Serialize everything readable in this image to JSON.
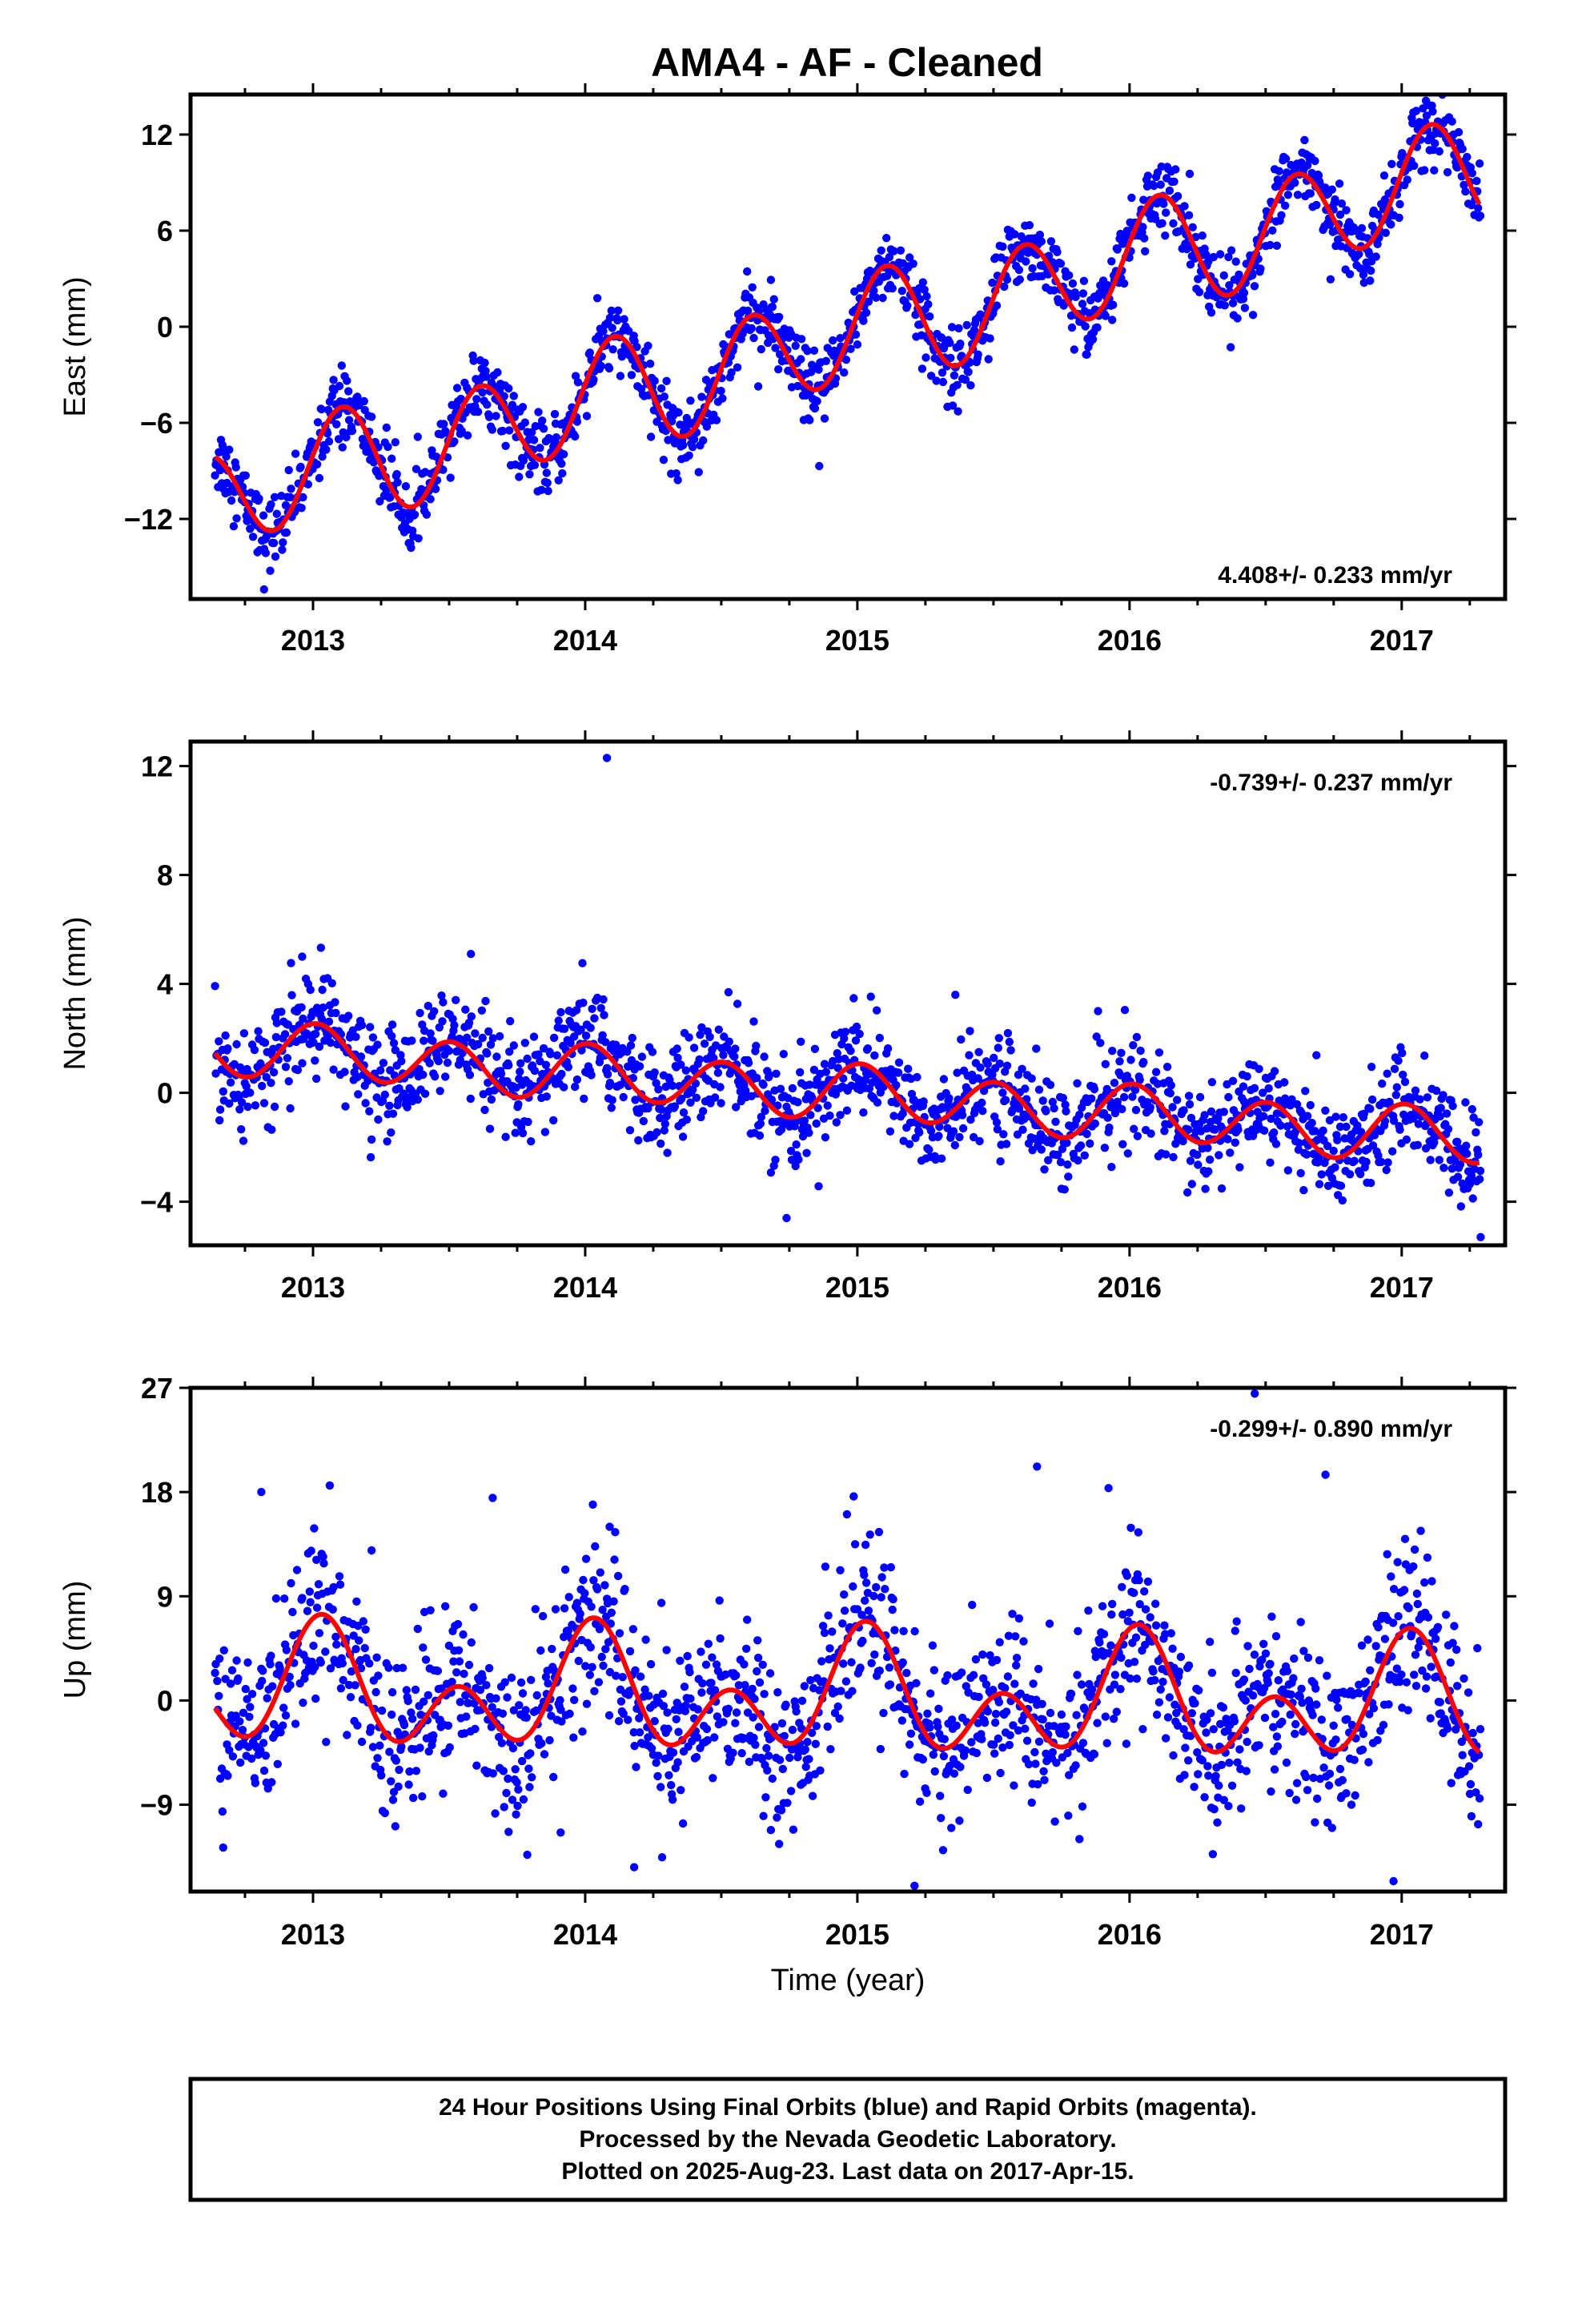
{
  "title": "AMA4  - AF - Cleaned",
  "colors": {
    "final_orbits": "#0000ff",
    "rapid_orbits": "#ff00ff",
    "model": "#ff0000",
    "axes": "#000000"
  },
  "chart_data": [
    {
      "type": "scatter",
      "panel": "east",
      "ylabel": "East (mm)",
      "xlabel": "",
      "xlim": [
        2012.55,
        2017.38
      ],
      "ylim": [
        -17,
        14.5
      ],
      "yticks": [
        -12,
        -6,
        0,
        6,
        12
      ],
      "xticks": [
        2013,
        2014,
        2015,
        2016,
        2017
      ],
      "xtick_labels": [
        "2013",
        "2014",
        "2015",
        "2016",
        "2017"
      ],
      "rate_text": "4.408+/- 0.233 mm/yr",
      "model": {
        "intercept": -10.75,
        "rate": 4.408,
        "t0": 2012.65,
        "annual_sin": 0.0,
        "annual_cos": 0.6,
        "semiannual_sin": 3.2,
        "semiannual_cos": 0.6
      },
      "data_range": [
        2012.64,
        2017.29
      ],
      "scatter_sd": 1.1,
      "outliers": [
        [
          2012.82,
          -16.4
        ],
        [
          2014.86,
          -8.7
        ],
        [
          2013.27,
          -6.3
        ]
      ]
    },
    {
      "type": "scatter",
      "panel": "north",
      "ylabel": "North (mm)",
      "xlabel": "",
      "xlim": [
        2012.55,
        2017.38
      ],
      "ylim": [
        -5.6,
        12.9
      ],
      "yticks": [
        -4,
        0,
        4,
        8,
        12
      ],
      "xticks": [
        2013,
        2014,
        2015,
        2016,
        2017
      ],
      "xtick_labels": [
        "2013",
        "2014",
        "2015",
        "2016",
        "2017"
      ],
      "rate_text": "-0.739+/- 0.237 mm/yr",
      "model": {
        "intercept": 1.7,
        "rate": -0.739,
        "t0": 2012.65,
        "annual_sin": 0.1,
        "annual_cos": 0.15,
        "semiannual_sin": 0.1,
        "semiannual_cos": 0.95
      },
      "data_range": [
        2012.64,
        2017.29
      ],
      "scatter_sd": 0.95,
      "outliers": [
        [
          2014.08,
          12.3
        ],
        [
          2014.74,
          -4.6
        ],
        [
          2015.36,
          3.6
        ],
        [
          2017.29,
          -5.3
        ],
        [
          2012.96,
          5.0
        ],
        [
          2013.58,
          5.1
        ]
      ]
    },
    {
      "type": "scatter",
      "panel": "up",
      "ylabel": "Up (mm)",
      "xlabel": "Time (year)",
      "xlim": [
        2012.55,
        2017.38
      ],
      "ylim": [
        -16.5,
        27
      ],
      "yticks": [
        -9,
        0,
        9,
        18,
        27
      ],
      "xticks": [
        2013,
        2014,
        2015,
        2016,
        2017
      ],
      "xtick_labels": [
        "2013",
        "2014",
        "2015",
        "2016",
        "2017"
      ],
      "rate_text": "-0.299+/- 0.890 mm/yr",
      "model": {
        "intercept": 0.8,
        "rate": -0.299,
        "t0": 2012.65,
        "annual_sin": 0.5,
        "annual_cos": 3.0,
        "semiannual_sin": 1.5,
        "semiannual_cos": 3.4
      },
      "data_range": [
        2012.64,
        2017.29
      ],
      "scatter_sd": 3.6,
      "outliers": [
        [
          2016.46,
          26.5
        ],
        [
          2015.66,
          20.2
        ],
        [
          2016.72,
          19.5
        ],
        [
          2012.81,
          18.0
        ],
        [
          2013.66,
          17.5
        ],
        [
          2014.09,
          15.0
        ],
        [
          2013.91,
          -11.4
        ],
        [
          2014.18,
          -14.4
        ],
        [
          2015.21,
          -16.0
        ],
        [
          2016.97,
          -15.6
        ]
      ]
    }
  ],
  "footer": {
    "line1": "24 Hour Positions Using Final Orbits (blue) and Rapid Orbits (magenta).",
    "line2": "Processed by the Nevada Geodetic Laboratory.",
    "line3": "Plotted on 2025-Aug-23. Last data on 2017-Apr-15."
  }
}
